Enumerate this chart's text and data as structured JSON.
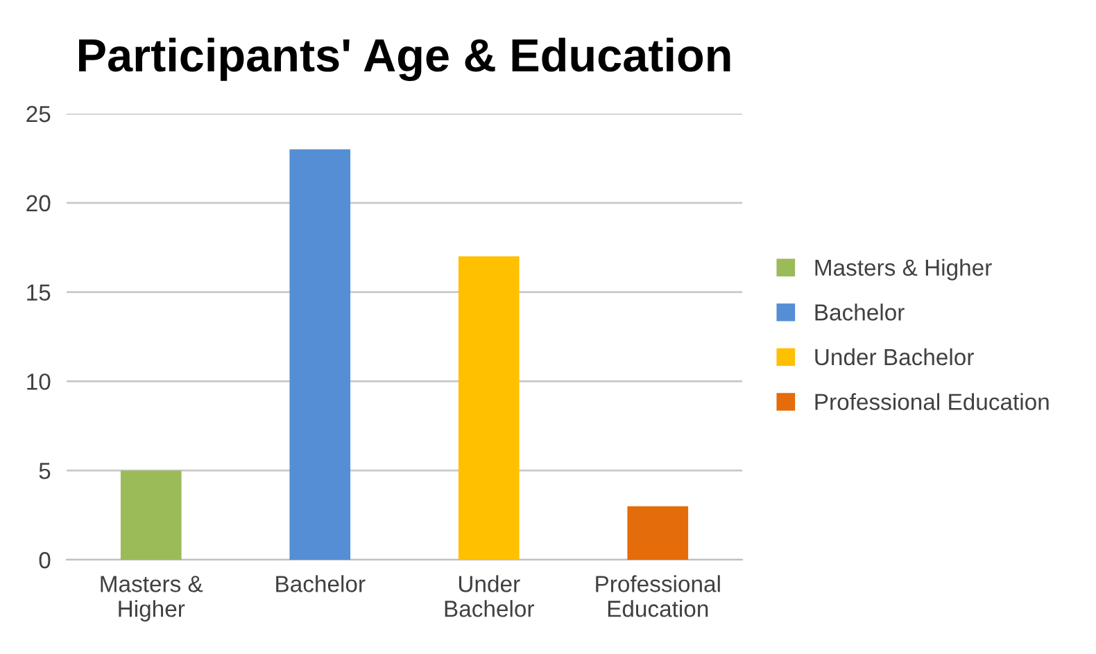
{
  "chart_data": {
    "type": "bar",
    "title": "Participants' Age & Education",
    "categories": [
      "Masters & Higher",
      "Bachelor",
      "Under Bachelor",
      "Professional Education"
    ],
    "series": [
      {
        "name": "Masters & Higher",
        "color": "#9bbb59",
        "values": [
          5,
          null,
          null,
          null
        ]
      },
      {
        "name": "Bachelor",
        "color": "#558ed5",
        "values": [
          null,
          23,
          null,
          null
        ]
      },
      {
        "name": "Under Bachelor",
        "color": "#ffc000",
        "values": [
          null,
          null,
          17,
          null
        ]
      },
      {
        "name": "Professional Education",
        "color": "#e46c0a",
        "values": [
          null,
          null,
          null,
          3
        ]
      }
    ],
    "ylim": [
      0,
      25
    ],
    "yticks": [
      0,
      5,
      10,
      15,
      20,
      25
    ],
    "grid": "y",
    "legend": "right"
  }
}
